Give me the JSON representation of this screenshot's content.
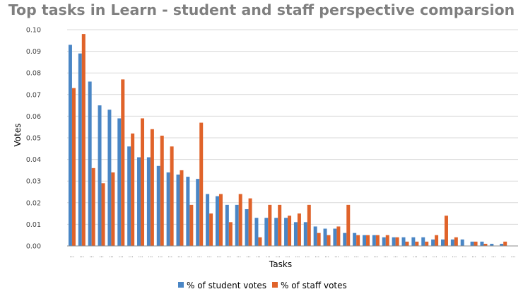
{
  "chart_data": {
    "type": "bar",
    "title": "Top tasks in Learn - student and staff perspective comparsion",
    "xlabel": "Tasks",
    "ylabel": "Votes",
    "ylim": [
      0,
      0.1
    ],
    "yticks": [
      "0.00",
      "0.01",
      "0.02",
      "0.03",
      "0.04",
      "0.05",
      "0.06",
      "0.07",
      "0.08",
      "0.09",
      "0.10"
    ],
    "category_label": "...",
    "category_count": 46,
    "grid": true,
    "legend_position": "bottom",
    "series": [
      {
        "name": "% of student votes",
        "color": "#4a86c5",
        "values": [
          0.093,
          0.089,
          0.076,
          0.065,
          0.063,
          0.059,
          0.046,
          0.041,
          0.041,
          0.037,
          0.034,
          0.033,
          0.032,
          0.031,
          0.024,
          0.023,
          0.019,
          0.019,
          0.017,
          0.013,
          0.013,
          0.013,
          0.013,
          0.011,
          0.011,
          0.009,
          0.008,
          0.008,
          0.006,
          0.006,
          0.005,
          0.005,
          0.004,
          0.004,
          0.004,
          0.004,
          0.004,
          0.003,
          0.003,
          0.003,
          0.003,
          0.002,
          0.002,
          0.001,
          0.001,
          0.0
        ]
      },
      {
        "name": "% of staff votes",
        "color": "#e0632a",
        "values": [
          0.073,
          0.098,
          0.036,
          0.029,
          0.034,
          0.077,
          0.052,
          0.059,
          0.054,
          0.051,
          0.046,
          0.035,
          0.019,
          0.057,
          0.015,
          0.024,
          0.011,
          0.024,
          0.022,
          0.004,
          0.019,
          0.019,
          0.014,
          0.015,
          0.019,
          0.006,
          0.005,
          0.009,
          0.019,
          0.005,
          0.005,
          0.005,
          0.005,
          0.004,
          0.002,
          0.002,
          0.002,
          0.005,
          0.014,
          0.004,
          0.0,
          0.002,
          0.001,
          0.0,
          0.002,
          0.0
        ]
      }
    ]
  }
}
